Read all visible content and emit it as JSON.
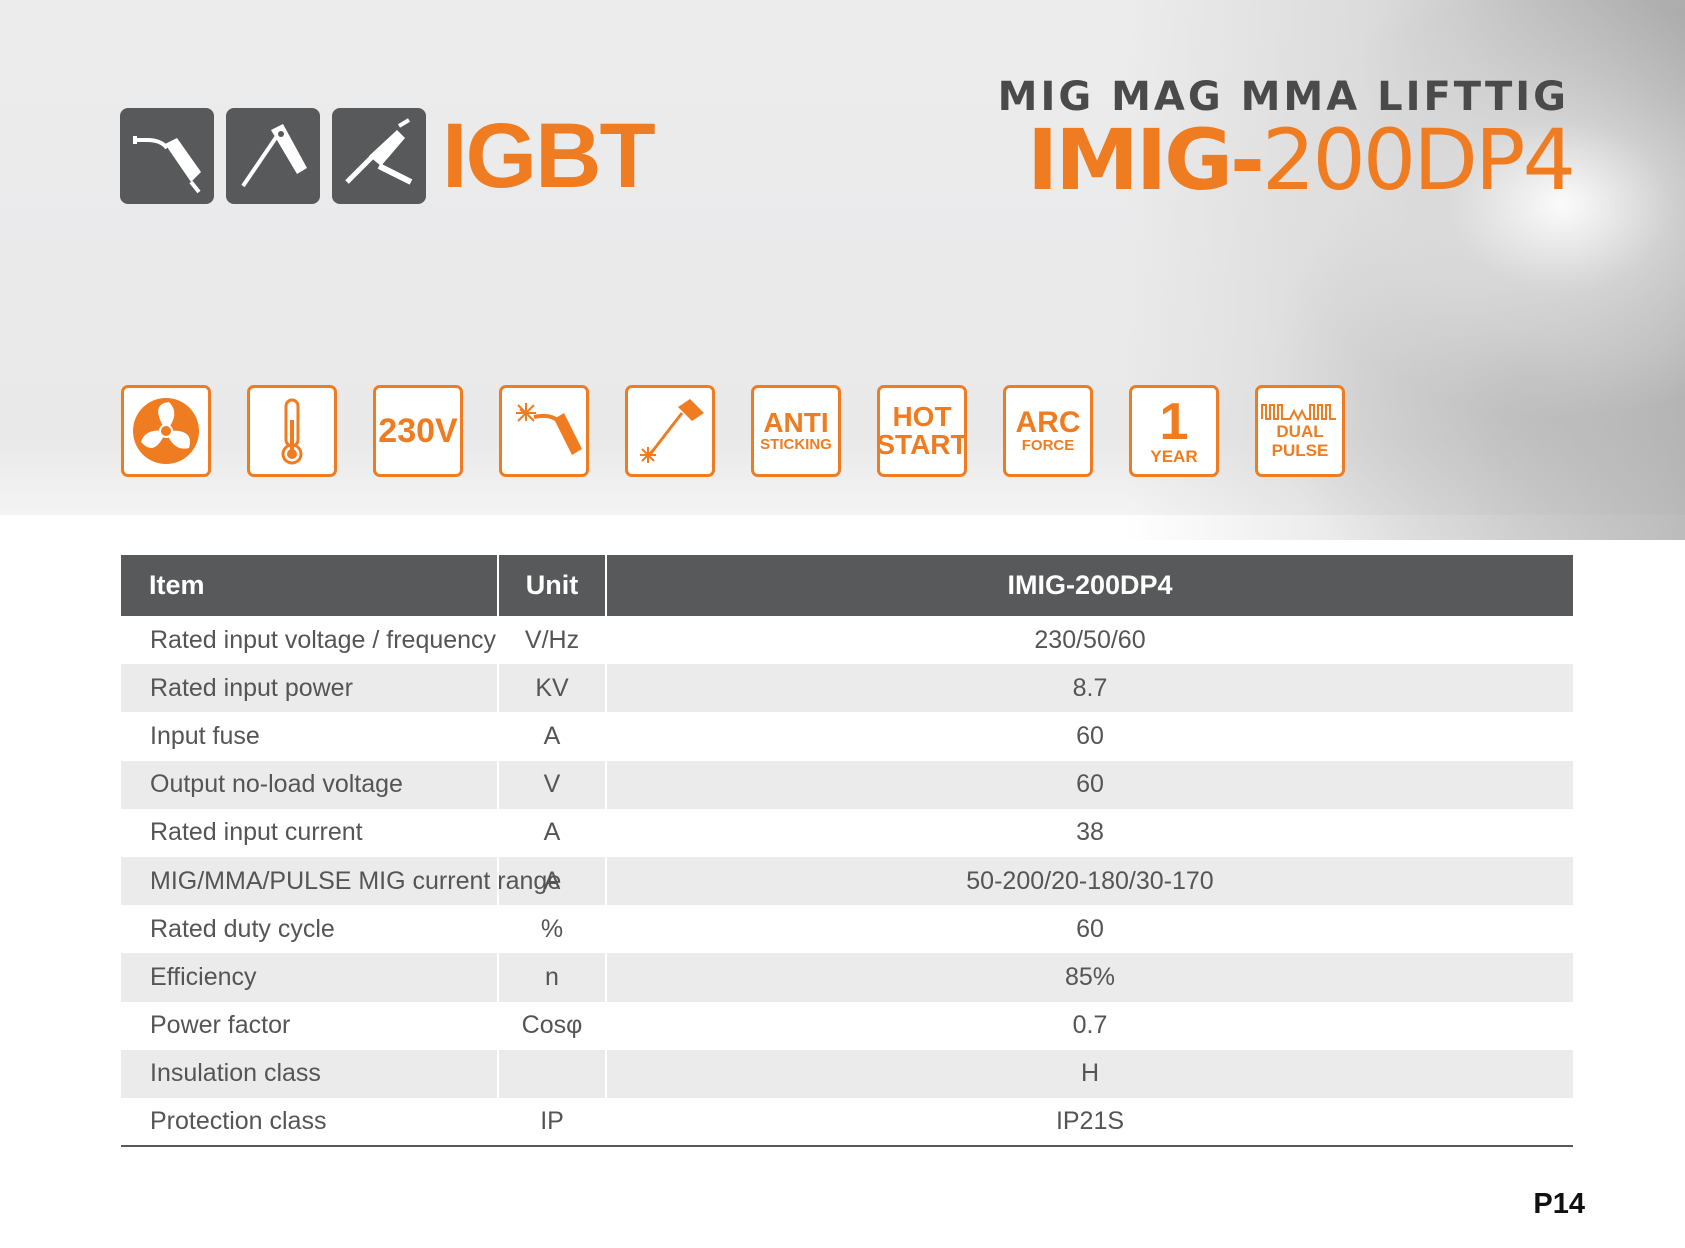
{
  "header": {
    "igbt_label": "IGBT",
    "subtitle": "MIG MAG MMA LIFTTIG",
    "model_prefix": "IMIG-",
    "model_suffix": "200DP4"
  },
  "process_icons": [
    {
      "icon": "mig-torch-icon"
    },
    {
      "icon": "mma-electrode-icon"
    },
    {
      "icon": "tig-torch-icon"
    }
  ],
  "features": {
    "fan": {
      "icon": "fan-icon"
    },
    "thermo": {
      "icon": "thermometer-icon"
    },
    "voltage": {
      "label": "230V"
    },
    "mig": {
      "icon": "mig-torch-spark-icon"
    },
    "mma": {
      "icon": "electrode-spark-icon"
    },
    "anti_sticking": {
      "line1": "ANTI",
      "line2": "STICKING"
    },
    "hot_start": {
      "line1": "HOT",
      "line2": "START"
    },
    "arc_force": {
      "line1": "ARC",
      "line2": "FORCE"
    },
    "warranty": {
      "number": "1",
      "unit": "YEAR"
    },
    "dual_pulse": {
      "line1": "DUAL",
      "line2": "PULSE"
    }
  },
  "spec_table": {
    "headers": [
      "Item",
      "Unit",
      "IMIG-200DP4"
    ],
    "rows": [
      [
        "Rated input voltage / frequency",
        "V/Hz",
        "230/50/60"
      ],
      [
        "Rated input power",
        "KV",
        "8.7"
      ],
      [
        "Input fuse",
        "A",
        "60"
      ],
      [
        "Output no-load voltage",
        "V",
        "60"
      ],
      [
        "Rated input current",
        "A",
        "38"
      ],
      [
        "MIG/MMA/PULSE MIG current range",
        "A",
        "50-200/20-180/30-170"
      ],
      [
        "Rated duty cycle",
        "%",
        "60"
      ],
      [
        "Efficiency",
        "n",
        "85%"
      ],
      [
        "Power factor",
        "Cosφ",
        "0.7"
      ],
      [
        "Insulation class",
        "",
        "H"
      ],
      [
        "Protection class",
        "IP",
        "IP21S"
      ]
    ]
  },
  "page_number": "P14",
  "colors": {
    "accent": "#f07c22",
    "dark": "#58595b",
    "row_alt": "#ebebeb"
  }
}
